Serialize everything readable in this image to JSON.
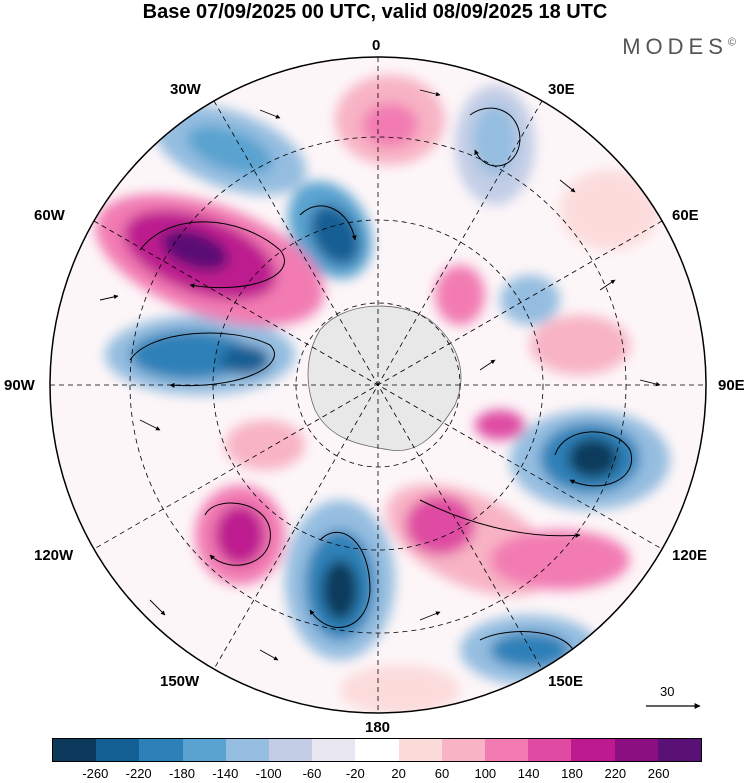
{
  "header": {
    "title": "Base 07/09/2025 00 UTC, valid 08/09/2025 18 UTC",
    "brand": "MODES",
    "brand_mark": "©"
  },
  "map": {
    "projection": "south-polar-stereographic",
    "longitude_labels": {
      "top": "0",
      "top_right": "30E",
      "right_upper": "60E",
      "right": "90E",
      "right_lower": "120E",
      "bottom_right": "150E",
      "bottom": "180",
      "bottom_left": "150W",
      "left_lower": "120W",
      "left": "90W",
      "left_upper": "60W",
      "top_left": "30W"
    },
    "vector_reference": "30"
  },
  "colorbar": {
    "colors": [
      "#0b3a5c",
      "#145f94",
      "#2d81b8",
      "#5aa3d0",
      "#94bde0",
      "#c3cde6",
      "#e7e6f1",
      "#ffffff",
      "#fcdbdb",
      "#f8b3c4",
      "#f27bb2",
      "#df4ba3",
      "#bd1a8f",
      "#8c0f82",
      "#5a1175"
    ],
    "tick_labels": [
      "-260",
      "-220",
      "-180",
      "-140",
      "-100",
      "-60",
      "-20",
      "20",
      "60",
      "100",
      "140",
      "180",
      "220",
      "260"
    ]
  }
}
